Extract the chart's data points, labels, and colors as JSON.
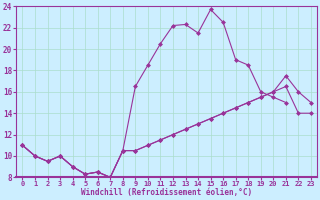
{
  "xlabel": "Windchill (Refroidissement éolien,°C)",
  "background_color": "#cceeff",
  "line_color": "#993399",
  "grid_color": "#aaddcc",
  "xlim": [
    -0.5,
    23.5
  ],
  "ylim": [
    8,
    24
  ],
  "xticks": [
    0,
    1,
    2,
    3,
    4,
    5,
    6,
    7,
    8,
    9,
    10,
    11,
    12,
    13,
    14,
    15,
    16,
    17,
    18,
    19,
    20,
    21,
    22,
    23
  ],
  "yticks": [
    8,
    10,
    12,
    14,
    16,
    18,
    20,
    22,
    24
  ],
  "line1_x": [
    0,
    1,
    2,
    3,
    4,
    5,
    6,
    7,
    8,
    9,
    10,
    11,
    12,
    13,
    14,
    15,
    16,
    17,
    18,
    19,
    20,
    21
  ],
  "line1_y": [
    11,
    10,
    9.5,
    10,
    9,
    8.3,
    8.5,
    8,
    10.5,
    16.5,
    18.5,
    20.5,
    22.2,
    22.3,
    21.5,
    23.7,
    22.5,
    19,
    18.5,
    16,
    15.5,
    15
  ],
  "line2_x": [
    0,
    1,
    2,
    3,
    4,
    5,
    6,
    7,
    8,
    9,
    10,
    11,
    12,
    13,
    14,
    15,
    16,
    17,
    18,
    19,
    20,
    21,
    22,
    23
  ],
  "line2_y": [
    11,
    10,
    9.5,
    10,
    9,
    8.3,
    8.5,
    8,
    10.5,
    10.5,
    11,
    11.5,
    12,
    12.5,
    13,
    13.5,
    14,
    14.5,
    15,
    15.5,
    16,
    17.5,
    16,
    15
  ],
  "line3_x": [
    0,
    1,
    2,
    3,
    4,
    5,
    6,
    7,
    8,
    9,
    10,
    11,
    12,
    13,
    14,
    15,
    16,
    17,
    18,
    19,
    20,
    21,
    22,
    23
  ],
  "line3_y": [
    11,
    10,
    9.5,
    10,
    9,
    8.3,
    8.5,
    8,
    10.5,
    10.5,
    11,
    11.5,
    12,
    12.5,
    13,
    13.5,
    14,
    14.5,
    15,
    15.5,
    16,
    16.5,
    14,
    14
  ],
  "xlabel_fontsize": 5.5,
  "tick_fontsize": 5,
  "marker_size": 2.5,
  "linewidth": 0.8
}
